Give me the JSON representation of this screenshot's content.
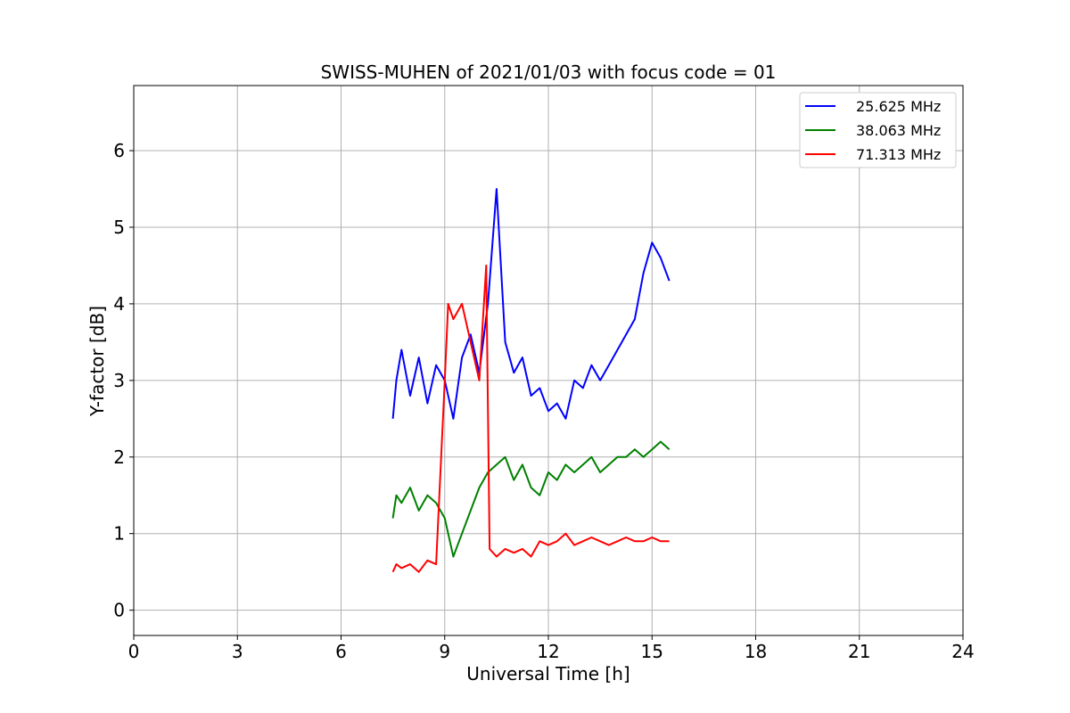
{
  "chart_data": {
    "type": "line",
    "title": "SWISS-MUHEN of 2021/01/03 with focus code = 01",
    "xlabel": "Universal Time [h]",
    "ylabel": "Y-factor [dB]",
    "xlim": [
      0,
      24
    ],
    "ylim": [
      -0.33,
      6.85
    ],
    "x_ticks": [
      0,
      3,
      6,
      9,
      12,
      15,
      18,
      21,
      24
    ],
    "y_ticks": [
      0,
      1,
      2,
      3,
      4,
      5,
      6
    ],
    "grid": true,
    "legend_position": "top-right",
    "series": [
      {
        "name": "25.625 MHz",
        "color": "#0000ff",
        "x": [
          7.5,
          7.6,
          7.75,
          8.0,
          8.25,
          8.5,
          8.75,
          9.0,
          9.25,
          9.5,
          9.75,
          10.0,
          10.25,
          10.5,
          10.75,
          11.0,
          11.25,
          11.5,
          11.75,
          12.0,
          12.25,
          12.5,
          12.75,
          13.0,
          13.25,
          13.5,
          13.75,
          14.0,
          14.25,
          14.5,
          14.75,
          15.0,
          15.25,
          15.5
        ],
        "y": [
          2.5,
          3.0,
          3.4,
          2.8,
          3.3,
          2.7,
          3.2,
          3.0,
          2.5,
          3.3,
          3.6,
          3.1,
          4.0,
          5.5,
          3.5,
          3.1,
          3.3,
          2.8,
          2.9,
          2.6,
          2.7,
          2.5,
          3.0,
          2.9,
          3.2,
          3.0,
          3.2,
          3.4,
          3.6,
          3.8,
          4.4,
          4.8,
          4.6,
          4.3
        ]
      },
      {
        "name": "38.063 MHz",
        "color": "#008000",
        "x": [
          7.5,
          7.6,
          7.75,
          8.0,
          8.25,
          8.5,
          8.75,
          9.0,
          9.25,
          9.5,
          9.75,
          10.0,
          10.25,
          10.5,
          10.75,
          11.0,
          11.25,
          11.5,
          11.75,
          12.0,
          12.25,
          12.5,
          12.75,
          13.0,
          13.25,
          13.5,
          13.75,
          14.0,
          14.25,
          14.5,
          14.75,
          15.0,
          15.25,
          15.5
        ],
        "y": [
          1.2,
          1.5,
          1.4,
          1.6,
          1.3,
          1.5,
          1.4,
          1.2,
          0.7,
          1.0,
          1.3,
          1.6,
          1.8,
          1.9,
          2.0,
          1.7,
          1.9,
          1.6,
          1.5,
          1.8,
          1.7,
          1.9,
          1.8,
          1.9,
          2.0,
          1.8,
          1.9,
          2.0,
          2.0,
          2.1,
          2.0,
          2.1,
          2.2,
          2.1
        ]
      },
      {
        "name": "71.313 MHz",
        "color": "#ff0000",
        "x": [
          7.5,
          7.6,
          7.75,
          8.0,
          8.25,
          8.5,
          8.75,
          9.0,
          9.1,
          9.25,
          9.5,
          9.75,
          10.0,
          10.2,
          10.3,
          10.5,
          10.75,
          11.0,
          11.25,
          11.5,
          11.75,
          12.0,
          12.25,
          12.5,
          12.75,
          13.0,
          13.25,
          13.5,
          13.75,
          14.0,
          14.25,
          14.5,
          14.75,
          15.0,
          15.25,
          15.5
        ],
        "y": [
          0.5,
          0.6,
          0.55,
          0.6,
          0.5,
          0.65,
          0.6,
          3.0,
          4.0,
          3.8,
          4.0,
          3.5,
          3.0,
          4.5,
          0.8,
          0.7,
          0.8,
          0.75,
          0.8,
          0.7,
          0.9,
          0.85,
          0.9,
          1.0,
          0.85,
          0.9,
          0.95,
          0.9,
          0.85,
          0.9,
          0.95,
          0.9,
          0.9,
          0.95,
          0.9,
          0.9
        ]
      }
    ]
  }
}
